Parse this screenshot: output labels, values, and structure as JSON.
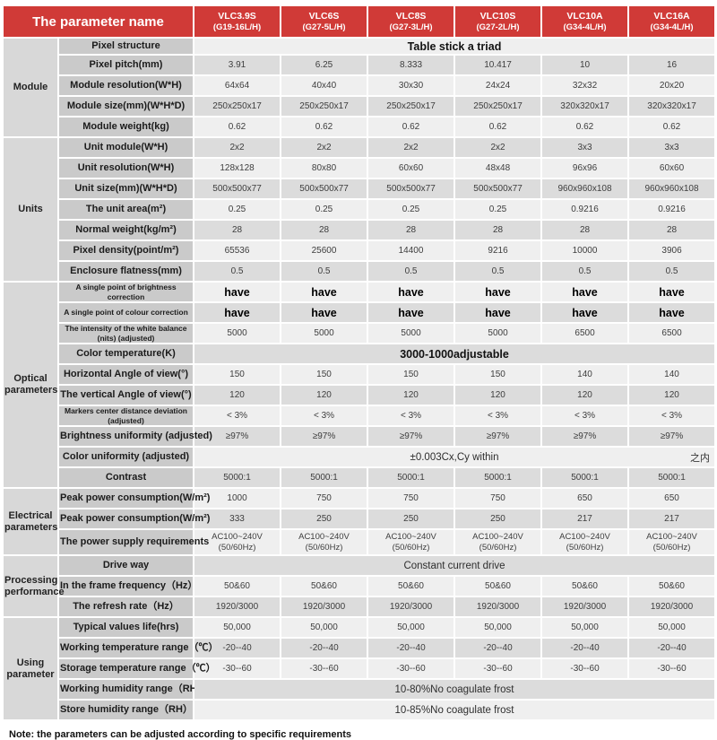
{
  "colors": {
    "header_red": "#d03a37",
    "group_column_gray": "#d8d8d8",
    "label_column_gray": "#cacaca",
    "stripe_dark": "#dcdcdc",
    "stripe_light": "#efefef"
  },
  "header": {
    "param_col_label": "The parameter name",
    "products": [
      {
        "model": "VLC3.9S",
        "sub": "(G19-16L/H)"
      },
      {
        "model": "VLC6S",
        "sub": "(G27-5L/H)"
      },
      {
        "model": "VLC8S",
        "sub": "(G27-3L/H)"
      },
      {
        "model": "VLC10S",
        "sub": "(G27-2L/H)"
      },
      {
        "model": "VLC10A",
        "sub": "(G34-4L/H)"
      },
      {
        "model": "VLC16A",
        "sub": "(G34-4L/H)"
      }
    ]
  },
  "groups": [
    {
      "name": "Module",
      "rows": [
        {
          "label": "Pixel structure",
          "span": "Table stick a triad",
          "span_bold": true,
          "h": "short"
        },
        {
          "label": "Pixel pitch(mm)",
          "values": [
            "3.91",
            "6.25",
            "8.333",
            "10.417",
            "10",
            "16"
          ]
        },
        {
          "label": "Module resolution(W*H)",
          "values": [
            "64x64",
            "40x40",
            "30x30",
            "24x24",
            "32x32",
            "20x20"
          ]
        },
        {
          "label": "Module size(mm)(W*H*D)",
          "values": [
            "250x250x17",
            "250x250x17",
            "250x250x17",
            "250x250x17",
            "320x320x17",
            "320x320x17"
          ]
        },
        {
          "label": "Module weight(kg)",
          "values": [
            "0.62",
            "0.62",
            "0.62",
            "0.62",
            "0.62",
            "0.62"
          ]
        }
      ]
    },
    {
      "name": "Units",
      "rows": [
        {
          "label": "Unit module(W*H)",
          "values": [
            "2x2",
            "2x2",
            "2x2",
            "2x2",
            "3x3",
            "3x3"
          ]
        },
        {
          "label": "Unit resolution(W*H)",
          "values": [
            "128x128",
            "80x80",
            "60x60",
            "48x48",
            "96x96",
            "60x60"
          ]
        },
        {
          "label": "Unit size(mm)(W*H*D)",
          "values": [
            "500x500x77",
            "500x500x77",
            "500x500x77",
            "500x500x77",
            "960x960x108",
            "960x960x108"
          ]
        },
        {
          "label": "The unit area(m²)",
          "values": [
            "0.25",
            "0.25",
            "0.25",
            "0.25",
            "0.9216",
            "0.9216"
          ]
        },
        {
          "label": "Normal weight(kg/m²)",
          "values": [
            "28",
            "28",
            "28",
            "28",
            "28",
            "28"
          ]
        },
        {
          "label": "Pixel density(point/m²)",
          "values": [
            "65536",
            "25600",
            "14400",
            "9216",
            "10000",
            "3906"
          ]
        },
        {
          "label": "Enclosure flatness(mm)",
          "values": [
            "0.5",
            "0.5",
            "0.5",
            "0.5",
            "0.5",
            "0.5"
          ]
        }
      ]
    },
    {
      "name": "Optical parameters",
      "rows": [
        {
          "label": "A single point of brightness correction",
          "small": true,
          "bold_values": true,
          "values": [
            "have",
            "have",
            "have",
            "have",
            "have",
            "have"
          ]
        },
        {
          "label": "A single point of colour correction",
          "small": true,
          "bold_values": true,
          "values": [
            "have",
            "have",
            "have",
            "have",
            "have",
            "have"
          ]
        },
        {
          "label": "The intensity of the white balance (nits) (adjusted)",
          "small": true,
          "values": [
            "5000",
            "5000",
            "5000",
            "5000",
            "6500",
            "6500"
          ]
        },
        {
          "label": "Color temperature(K)",
          "span": "3000-1000adjustable",
          "span_bold": true
        },
        {
          "label": "Horizontal Angle of view(°)",
          "values": [
            "150",
            "150",
            "150",
            "150",
            "140",
            "140"
          ]
        },
        {
          "label": "The vertical Angle of view(°)",
          "values": [
            "120",
            "120",
            "120",
            "120",
            "120",
            "120"
          ]
        },
        {
          "label": "Markers center distance deviation (adjusted)",
          "small": true,
          "values": [
            "< 3%",
            "< 3%",
            "< 3%",
            "< 3%",
            "< 3%",
            "< 3%"
          ]
        },
        {
          "label": "Brightness uniformity (adjusted)",
          "nowrap": true,
          "values": [
            "≥97%",
            "≥97%",
            "≥97%",
            "≥97%",
            "≥97%",
            "≥97%"
          ]
        },
        {
          "label": "Color uniformity (adjusted)",
          "span": "±0.003Cx,Cy within",
          "right_note": "之内"
        },
        {
          "label": "Contrast",
          "values": [
            "5000:1",
            "5000:1",
            "5000:1",
            "5000:1",
            "5000:1",
            "5000:1"
          ]
        }
      ]
    },
    {
      "name": "Electrical parameters",
      "rows": [
        {
          "label": "Peak power consumption(W/m²)",
          "nowrap": true,
          "values": [
            "1000",
            "750",
            "750",
            "750",
            "650",
            "650"
          ]
        },
        {
          "label": "Peak power consumption(W/m²)",
          "nowrap": true,
          "values": [
            "333",
            "250",
            "250",
            "250",
            "217",
            "217"
          ]
        },
        {
          "label": "The power supply requirements",
          "nowrap": true,
          "pre": true,
          "h": "tall",
          "values": [
            "AC100~240V\n(50/60Hz)",
            "AC100~240V\n(50/60Hz)",
            "AC100~240V\n(50/60Hz)",
            "AC100~240V\n(50/60Hz)",
            "AC100~240V\n(50/60Hz)",
            "AC100~240V\n(50/60Hz)"
          ]
        }
      ]
    },
    {
      "name": "Processing performance",
      "rows": [
        {
          "label": "Drive way",
          "span": "Constant current drive"
        },
        {
          "label": "In the frame frequency（Hz）",
          "nowrap": true,
          "values": [
            "50&60",
            "50&60",
            "50&60",
            "50&60",
            "50&60",
            "50&60"
          ]
        },
        {
          "label": "The refresh rate（Hz）",
          "values": [
            "1920/3000",
            "1920/3000",
            "1920/3000",
            "1920/3000",
            "1920/3000",
            "1920/3000"
          ]
        }
      ]
    },
    {
      "name": "Using parameter",
      "rows": [
        {
          "label": "Typical values life(hrs)",
          "values": [
            "50,000",
            "50,000",
            "50,000",
            "50,000",
            "50,000",
            "50,000"
          ]
        },
        {
          "label": "Working temperature range（℃）",
          "nowrap": true,
          "values": [
            "-20--40",
            "-20--40",
            "-20--40",
            "-20--40",
            "-20--40",
            "-20--40"
          ]
        },
        {
          "label": "Storage temperature range（℃）",
          "nowrap": true,
          "values": [
            "-30--60",
            "-30--60",
            "-30--60",
            "-30--60",
            "-30--60",
            "-30--60"
          ]
        },
        {
          "label": "Working humidity range（RH）",
          "nowrap": true,
          "span": "10-80%No coagulate frost"
        },
        {
          "label": "Store humidity range（RH）",
          "nowrap": true,
          "span": "10-85%No coagulate frost"
        }
      ]
    }
  ],
  "note": "Note: the parameters can be adjusted according to specific requirements"
}
